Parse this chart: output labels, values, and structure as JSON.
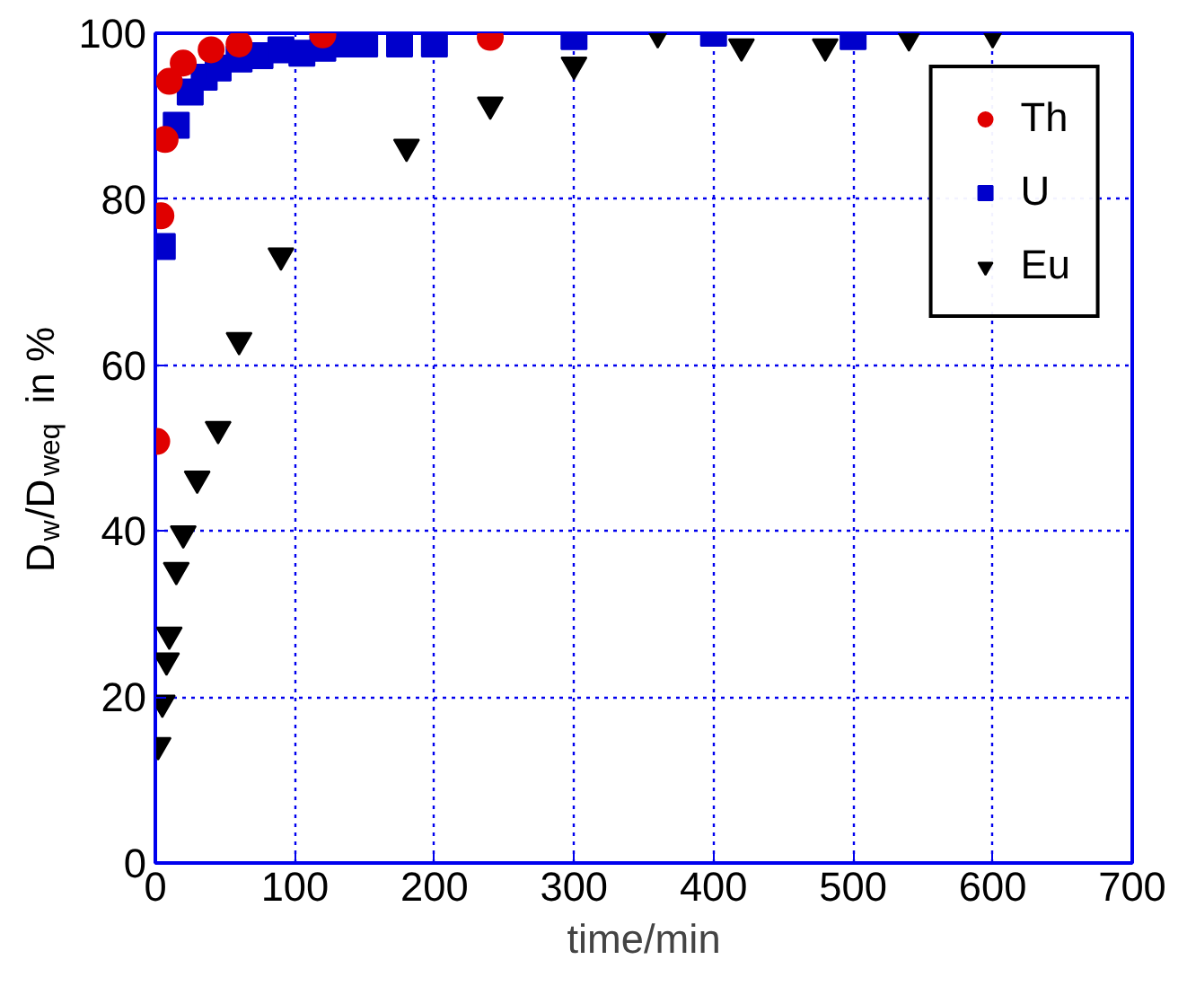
{
  "chart_data": {
    "type": "scatter",
    "xlabel": "time/min",
    "ylabel": "D$_{w}$/D$_{weq}$ in %",
    "xlim": [
      0,
      700
    ],
    "ylim": [
      0,
      100
    ],
    "xticks": [
      0,
      100,
      200,
      300,
      400,
      500,
      600,
      700
    ],
    "yticks": [
      0,
      20,
      40,
      60,
      80,
      100
    ],
    "grid": true,
    "legend": "top right",
    "series": [
      {
        "name": "Th",
        "color": "#e00000",
        "marker": "circle",
        "x": [
          1,
          4,
          7,
          10,
          20,
          40,
          60,
          120,
          240
        ],
        "values": [
          50.8,
          78,
          87.2,
          94.2,
          96.4,
          98,
          98.7,
          99.8,
          99.5
        ]
      },
      {
        "name": "U",
        "color": "#0000cc",
        "marker": "square",
        "x": [
          5,
          15,
          25,
          35,
          45,
          60,
          75,
          90,
          105,
          120,
          135,
          150,
          175,
          200,
          300,
          400,
          500
        ],
        "values": [
          74.3,
          88.9,
          92.9,
          94.7,
          95.8,
          96.9,
          97.3,
          98,
          97.6,
          98.2,
          98.7,
          98.7,
          98.7,
          98.7,
          99.6,
          100,
          99.6
        ]
      },
      {
        "name": "Eu",
        "color": "#000000",
        "marker": "triangle",
        "x": [
          2,
          5,
          8,
          10,
          15,
          20,
          30,
          45,
          60,
          90,
          180,
          240,
          300,
          360,
          420,
          480,
          540,
          600
        ],
        "values": [
          14.2,
          19.3,
          24.4,
          27.5,
          35.3,
          39.7,
          46.3,
          52.3,
          63,
          73.2,
          86.3,
          91.4,
          96.2,
          100,
          98.4,
          98.4,
          99.6,
          100
        ]
      }
    ]
  }
}
